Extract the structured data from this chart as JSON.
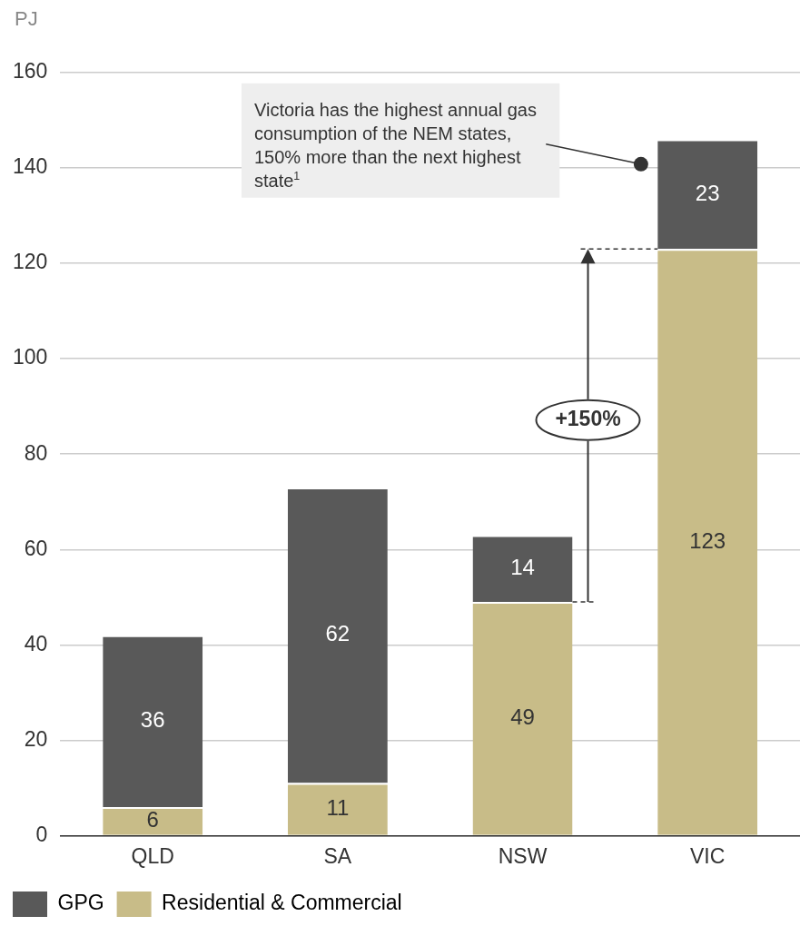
{
  "chart_data": {
    "type": "bar",
    "stacked": true,
    "ylabel": "PJ",
    "categories": [
      "QLD",
      "SA",
      "NSW",
      "VIC"
    ],
    "series": [
      {
        "name": "Residential & Commercial",
        "color": "#c8bc88",
        "values": [
          6,
          11,
          49,
          123
        ]
      },
      {
        "name": "GPG",
        "color": "#595959",
        "values": [
          36,
          62,
          14,
          23
        ]
      }
    ],
    "ylim": [
      0,
      160
    ],
    "yticks": [
      0,
      20,
      40,
      60,
      80,
      100,
      120,
      140,
      160
    ],
    "grid": "y",
    "legend": "bottom left",
    "data_labels": true,
    "annotations": [
      "Victoria has the highest annual gas consumption of the NEM states, 150% more than the next highest state$^{1}$",
      "+150%"
    ]
  }
}
